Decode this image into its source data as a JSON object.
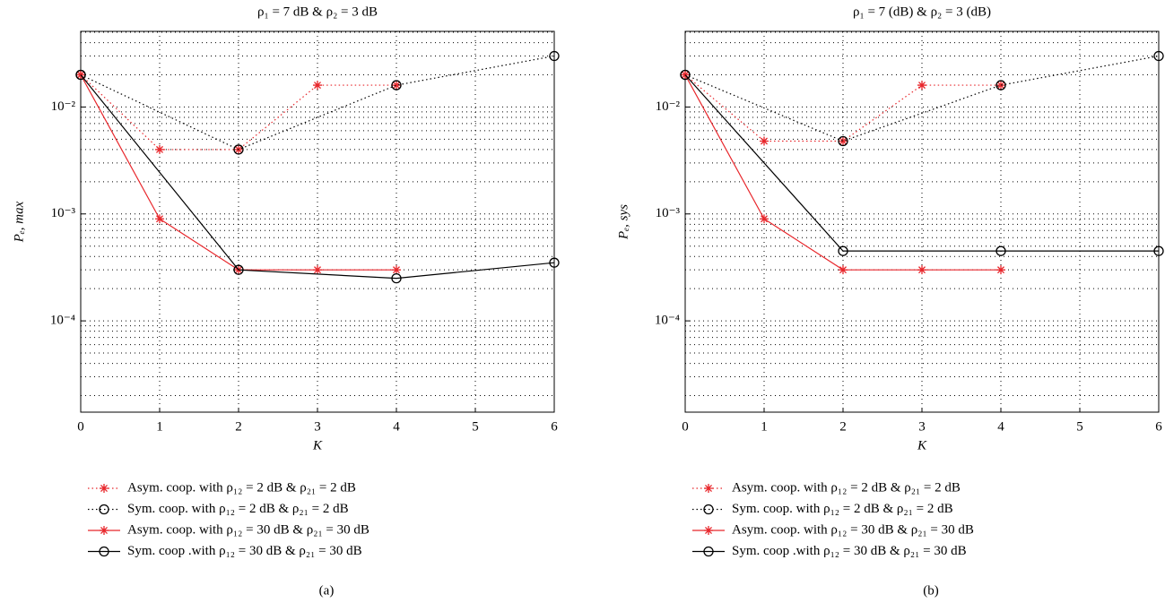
{
  "chart_data": [
    {
      "type": "line",
      "title": "ρ₁ = 7 dB & ρ₂ = 3 dB",
      "x_label": "K",
      "y_label": "Pₑ, max",
      "caption": "(a)",
      "xlim": [
        0,
        6
      ],
      "xticks": [
        0,
        1,
        2,
        3,
        4,
        5,
        6
      ],
      "ylim": [
        1.4e-05,
        0.051
      ],
      "log_y": true,
      "grid": true,
      "yticks": [
        {
          "value": 0.0001,
          "label": "10⁻⁴"
        },
        {
          "value": 0.001,
          "label": "10⁻³"
        },
        {
          "value": 0.01,
          "label": "10⁻²"
        }
      ],
      "series": [
        {
          "name": "Asym. coop. with ρ₁₂ = 2 dB & ρ₂₁ = 2 dB",
          "color": "#e8262b",
          "dash": "dotted",
          "marker": "star",
          "x": [
            0,
            1,
            2,
            3,
            4
          ],
          "values": [
            0.02,
            0.004,
            0.004,
            0.016,
            0.016
          ]
        },
        {
          "name": "Sym. coop. with ρ₁₂ = 2 dB & ρ₂₁ = 2 dB",
          "color": "#000000",
          "dash": "dotted",
          "marker": "circle",
          "x": [
            0,
            2,
            4,
            6
          ],
          "values": [
            0.02,
            0.004,
            0.016,
            0.03
          ]
        },
        {
          "name": "Asym. coop. with ρ₁₂ = 30 dB & ρ₂₁ = 30 dB",
          "color": "#e8262b",
          "dash": "solid",
          "marker": "star",
          "x": [
            0,
            1,
            2,
            3,
            4
          ],
          "values": [
            0.02,
            0.0009,
            0.0003,
            0.0003,
            0.0003
          ]
        },
        {
          "name": "Sym. coop .with ρ₁₂ = 30 dB & ρ₂₁ = 30 dB",
          "color": "#000000",
          "dash": "solid",
          "marker": "circle",
          "x": [
            0,
            2,
            4,
            6
          ],
          "values": [
            0.02,
            0.0003,
            0.00025,
            0.00035
          ]
        }
      ]
    },
    {
      "type": "line",
      "title": "ρ₁ = 7 (dB) & ρ₂ = 3 (dB)",
      "x_label": "K",
      "y_label": "Pₑ, sys",
      "caption": "(b)",
      "xlim": [
        0,
        6
      ],
      "xticks": [
        0,
        1,
        2,
        3,
        4,
        5,
        6
      ],
      "ylim": [
        1.4e-05,
        0.051
      ],
      "log_y": true,
      "grid": true,
      "yticks": [
        {
          "value": 0.0001,
          "label": "10⁻⁴"
        },
        {
          "value": 0.001,
          "label": "10⁻³"
        },
        {
          "value": 0.01,
          "label": "10⁻²"
        }
      ],
      "series": [
        {
          "name": "Asym. coop. with ρ₁₂ = 2 dB & ρ₂₁ = 2 dB",
          "color": "#e8262b",
          "dash": "dotted",
          "marker": "star",
          "x": [
            0,
            1,
            2,
            3,
            4
          ],
          "values": [
            0.02,
            0.0048,
            0.0048,
            0.016,
            0.016
          ]
        },
        {
          "name": "Sym. coop. with ρ₁₂ = 2 dB & ρ₂₁ = 2 dB",
          "color": "#000000",
          "dash": "dotted",
          "marker": "circle",
          "x": [
            0,
            2,
            4,
            6
          ],
          "values": [
            0.02,
            0.0048,
            0.016,
            0.03
          ]
        },
        {
          "name": "Asym. coop. with ρ₁₂ = 30 dB & ρ₂₁ = 30 dB",
          "color": "#e8262b",
          "dash": "solid",
          "marker": "star",
          "x": [
            0,
            1,
            2,
            3,
            4
          ],
          "values": [
            0.02,
            0.0009,
            0.0003,
            0.0003,
            0.0003
          ]
        },
        {
          "name": "Sym. coop .with ρ₁₂ = 30 dB & ρ₂₁ = 30 dB",
          "color": "#000000",
          "dash": "solid",
          "marker": "circle",
          "x": [
            0,
            2,
            4,
            6
          ],
          "values": [
            0.02,
            0.00045,
            0.00045,
            0.00045
          ]
        }
      ]
    }
  ]
}
